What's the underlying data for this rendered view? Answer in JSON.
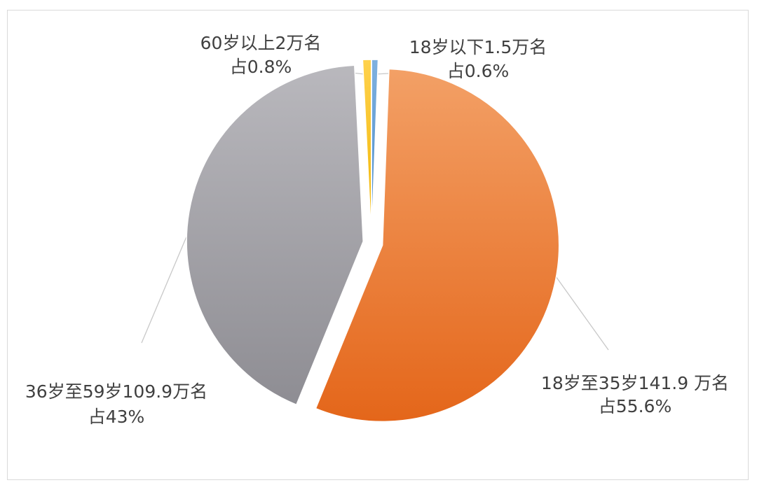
{
  "chart_data": {
    "type": "pie",
    "title": "",
    "slices": [
      {
        "label_line1": "18岁以下1.5万名",
        "label_line2": "占0.6%",
        "value": 1.5,
        "percent": 0.6,
        "color": "#5b9bd5"
      },
      {
        "label_line1": "18岁至35岁141.9 万名",
        "label_line2": "占55.6%",
        "value": 141.9,
        "percent": 55.6,
        "color": "#ed7d31"
      },
      {
        "label_line1": "36岁至59岁109.9万名",
        "label_line2": "占43%",
        "value": 109.9,
        "percent": 43,
        "color": "#a5a5a5"
      },
      {
        "label_line1": "60岁以上2万名",
        "label_line2": "占0.8%",
        "value": 2,
        "percent": 0.8,
        "color": "#ffc000"
      }
    ]
  }
}
